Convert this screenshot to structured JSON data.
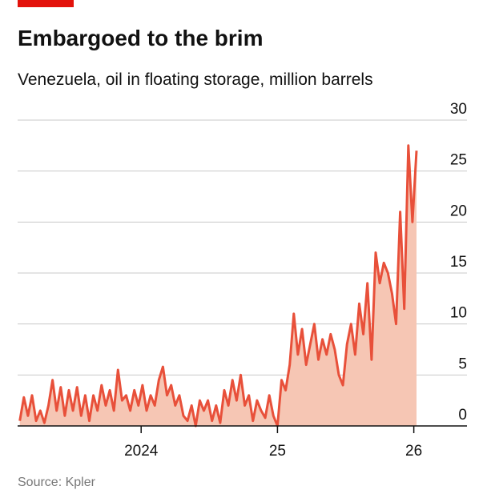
{
  "chart_data": {
    "type": "line",
    "title": "Embargoed to the brim",
    "subtitle": "Venezuela, oil in floating storage, million barrels",
    "source": "Source: Kpler",
    "x": [
      2023.11,
      2023.14,
      2023.17,
      2023.2,
      2023.23,
      2023.26,
      2023.29,
      2023.32,
      2023.35,
      2023.38,
      2023.41,
      2023.44,
      2023.47,
      2023.5,
      2023.53,
      2023.56,
      2023.59,
      2023.62,
      2023.65,
      2023.68,
      2023.71,
      2023.74,
      2023.77,
      2023.8,
      2023.83,
      2023.86,
      2023.89,
      2023.92,
      2023.95,
      2023.98,
      2024.01,
      2024.04,
      2024.07,
      2024.1,
      2024.13,
      2024.16,
      2024.19,
      2024.22,
      2024.25,
      2024.28,
      2024.31,
      2024.34,
      2024.37,
      2024.4,
      2024.43,
      2024.46,
      2024.49,
      2024.52,
      2024.55,
      2024.58,
      2024.61,
      2024.64,
      2024.67,
      2024.7,
      2024.73,
      2024.76,
      2024.79,
      2024.82,
      2024.85,
      2024.88,
      2024.91,
      2024.94,
      2024.97,
      2025.0,
      2025.03,
      2025.06,
      2025.09,
      2025.12,
      2025.15,
      2025.18,
      2025.21,
      2025.24,
      2025.27,
      2025.3,
      2025.33,
      2025.36,
      2025.39,
      2025.42,
      2025.45,
      2025.48,
      2025.51,
      2025.54,
      2025.57,
      2025.6,
      2025.63,
      2025.66,
      2025.69,
      2025.72,
      2025.75,
      2025.78,
      2025.81,
      2025.84,
      2025.87,
      2025.9,
      2025.93,
      2025.96,
      2025.99,
      2026.02
    ],
    "series": [
      {
        "color": "#e8503a",
        "area_color": "#f6c6b4",
        "values": [
          0.5,
          2.8,
          1,
          3,
          0.5,
          1.5,
          0.3,
          2,
          4.5,
          1.5,
          3.8,
          1,
          3.5,
          1.5,
          3.8,
          1,
          3,
          0.5,
          3,
          1.5,
          4,
          2,
          3.5,
          1.5,
          5.5,
          2.5,
          3,
          1.5,
          3.5,
          2,
          4,
          1.5,
          3,
          2,
          4.5,
          5.8,
          3,
          4,
          2,
          3,
          1,
          0.5,
          2,
          0,
          2.5,
          1.5,
          2.5,
          0.5,
          2,
          0.3,
          3.5,
          2,
          4.5,
          2.5,
          5,
          2,
          3,
          0.5,
          2.5,
          1.5,
          0.8,
          3,
          1,
          0,
          4.5,
          3.5,
          6,
          11,
          7,
          9.5,
          6,
          8,
          10,
          6.5,
          8.5,
          7,
          9,
          7.5,
          5,
          4,
          8,
          10,
          7,
          12,
          9,
          14,
          6.5,
          17,
          14,
          16,
          15,
          13,
          10,
          21,
          11.5,
          27.5,
          20,
          27
        ]
      }
    ],
    "xlim": [
      2023.094,
      2026.39
    ],
    "xticks": [
      {
        "value": 2024,
        "label": "2024"
      },
      {
        "value": 2025,
        "label": "25"
      },
      {
        "value": 2026,
        "label": "26"
      }
    ],
    "ylim": [
      0,
      30
    ],
    "yticks": [
      0,
      5,
      10,
      15,
      20,
      25,
      30
    ],
    "grid": true
  }
}
